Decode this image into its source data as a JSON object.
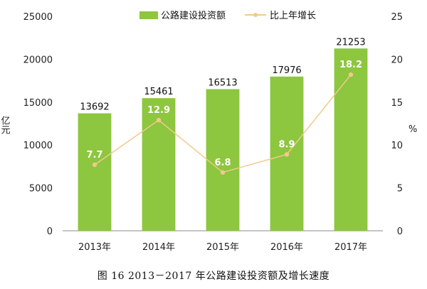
{
  "caption": "图 16    2013－2017 年公路建设投资额及增长速度",
  "chart_data": {
    "type": "bar",
    "categories": [
      "2013年",
      "2014年",
      "2015年",
      "2016年",
      "2017年"
    ],
    "series": [
      {
        "name": "公路建设投资额",
        "type": "bar",
        "axis": "left",
        "values": [
          13692,
          15461,
          16513,
          17976,
          21253
        ],
        "color": "#8DC63F"
      },
      {
        "name": "比上年增长",
        "type": "line",
        "axis": "right",
        "values": [
          7.7,
          12.9,
          6.8,
          8.9,
          18.2
        ],
        "color": "#F2C98C"
      }
    ],
    "ylabel": "亿元",
    "ylabel_right": "%",
    "ylim": [
      0,
      25000
    ],
    "ylim_right": [
      0,
      25
    ],
    "yticks": [
      "0",
      "5000",
      "10000",
      "15000",
      "20000",
      "25000"
    ],
    "yticks_right": [
      "0",
      "5",
      "10",
      "15",
      "20",
      "25"
    ],
    "legend": "top"
  }
}
